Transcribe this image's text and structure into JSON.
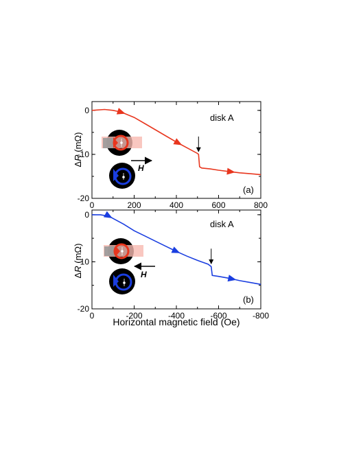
{
  "colors": {
    "panel_a_line": "#e8361e",
    "panel_b_line": "#1a3ee0",
    "red": "#e8361e",
    "blue": "#1a3ee0",
    "axis": "#000000"
  },
  "xlabel": "Horizontal magnetic field (Oe)",
  "chart_data": [
    {
      "type": "line",
      "panel_label": "(a)",
      "annotation": "disk A",
      "field_label": "H",
      "field_direction": "positive",
      "ylabel": "ΔR (mΩ)",
      "xlim": [
        0,
        800
      ],
      "ylim": [
        -20,
        2
      ],
      "xticks": [
        0,
        200,
        400,
        600,
        800
      ],
      "xtick_labels": [
        "0",
        "200",
        "400",
        "600",
        "800"
      ],
      "yticks": [
        0,
        -10,
        -20
      ],
      "ytick_labels": [
        "0",
        "-10",
        "-20"
      ],
      "jump_arrow_x": 505,
      "series": [
        {
          "color": "red",
          "x": [
            0,
            60,
            100,
            120,
            150,
            200,
            250,
            300,
            350,
            400,
            450,
            500,
            505,
            510,
            520,
            560,
            600,
            650,
            700,
            750,
            800
          ],
          "y": [
            0,
            0.2,
            0,
            -0.2,
            -0.6,
            -1.6,
            -3.0,
            -4.4,
            -5.8,
            -7.2,
            -8.5,
            -9.8,
            -10.0,
            -12.8,
            -13.1,
            -13.3,
            -13.6,
            -13.9,
            -14.2,
            -14.4,
            -14.6
          ]
        }
      ],
      "direction_arrows_x": [
        140,
        410,
        660
      ]
    },
    {
      "type": "line",
      "panel_label": "(b)",
      "annotation": "disk A",
      "field_label": "H",
      "field_direction": "negative",
      "ylabel": "ΔR (mΩ)",
      "xlim": [
        0,
        -800
      ],
      "ylim": [
        -20,
        1
      ],
      "xticks": [
        0,
        -200,
        -400,
        -600,
        -800
      ],
      "xtick_labels": [
        "0",
        "-200",
        "-400",
        "-600",
        "-800"
      ],
      "yticks": [
        0,
        -10,
        -20
      ],
      "ytick_labels": [
        "0",
        "-10",
        "-20"
      ],
      "jump_arrow_x": -565,
      "series": [
        {
          "color": "blue",
          "x": [
            0,
            -40,
            -80,
            -100,
            -150,
            -200,
            -250,
            -300,
            -350,
            -400,
            -450,
            -500,
            -550,
            -565,
            -570,
            -600,
            -650,
            -700,
            -750,
            -800
          ],
          "y": [
            0,
            0,
            -0.3,
            -0.8,
            -2.0,
            -3.4,
            -4.5,
            -5.6,
            -6.7,
            -7.8,
            -8.8,
            -9.7,
            -10.5,
            -11.0,
            -12.9,
            -13.1,
            -13.5,
            -14.0,
            -14.4,
            -14.8
          ]
        }
      ],
      "direction_arrows_x": [
        -80,
        -400,
        -665
      ]
    }
  ]
}
